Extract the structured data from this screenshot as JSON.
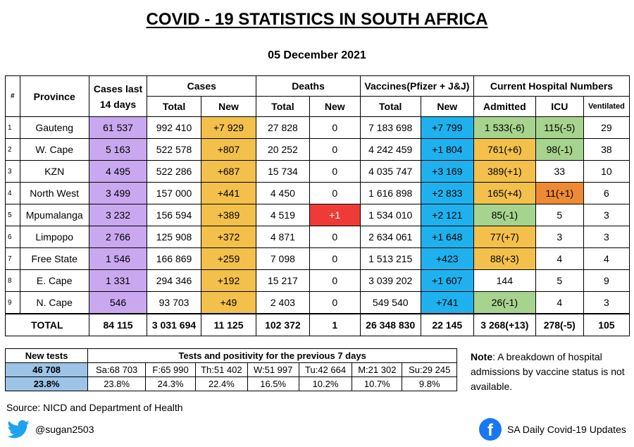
{
  "title": "COVID - 19 STATISTICS IN SOUTH AFRICA",
  "date": "05 December 2021",
  "headers": {
    "num": "#",
    "province": "Province",
    "cases14_line1": "Cases last",
    "cases14_line2": "14 days",
    "cases": "Cases",
    "deaths": "Deaths",
    "vaccines": "Vaccines(Pfizer + J&J)",
    "hospital": "Current Hospital Numbers",
    "total": "Total",
    "new": "New",
    "admitted": "Admitted",
    "icu": "ICU",
    "ventilated": "Ventilated"
  },
  "rows": [
    {
      "num": "1",
      "province": "Gauteng",
      "cases14": "61 537",
      "cases_total": "992 410",
      "cases_new": "+7 929",
      "deaths_total": "27 828",
      "deaths_new": "0",
      "vacc_total": "7 183 698",
      "vacc_new": "+7 799",
      "admitted": "1 533(-6)",
      "icu": "115(-5)",
      "ventilated": "29"
    },
    {
      "num": "2",
      "province": "W. Cape",
      "cases14": "5 163",
      "cases_total": "522 578",
      "cases_new": "+807",
      "deaths_total": "20 252",
      "deaths_new": "0",
      "vacc_total": "4 242 459",
      "vacc_new": "+1 804",
      "admitted": "761(+6)",
      "icu": "98(-1)",
      "ventilated": "38"
    },
    {
      "num": "3",
      "province": "KZN",
      "cases14": "4 495",
      "cases_total": "522 286",
      "cases_new": "+687",
      "deaths_total": "15 734",
      "deaths_new": "0",
      "vacc_total": "4 035 747",
      "vacc_new": "+3 169",
      "admitted": "389(+1)",
      "icu": "33",
      "ventilated": "10"
    },
    {
      "num": "4",
      "province": "North West",
      "cases14": "3 499",
      "cases_total": "157 000",
      "cases_new": "+441",
      "deaths_total": "4 450",
      "deaths_new": "0",
      "vacc_total": "1 616 898",
      "vacc_new": "+2 833",
      "admitted": "165(+4)",
      "icu": "11(+1)",
      "ventilated": "6"
    },
    {
      "num": "5",
      "province": "Mpumalanga",
      "cases14": "3 232",
      "cases_total": "156 594",
      "cases_new": "+389",
      "deaths_total": "4 519",
      "deaths_new": "+1",
      "vacc_total": "1 534 010",
      "vacc_new": "+2 121",
      "admitted": "85(-1)",
      "icu": "5",
      "ventilated": "3"
    },
    {
      "num": "6",
      "province": "Limpopo",
      "cases14": "2 766",
      "cases_total": "125 908",
      "cases_new": "+372",
      "deaths_total": "4 871",
      "deaths_new": "0",
      "vacc_total": "2 634 061",
      "vacc_new": "+1 648",
      "admitted": "77(+7)",
      "icu": "3",
      "ventilated": "3"
    },
    {
      "num": "7",
      "province": "Free State",
      "cases14": "1 546",
      "cases_total": "166 869",
      "cases_new": "+259",
      "deaths_total": "7 098",
      "deaths_new": "0",
      "vacc_total": "1 513 215",
      "vacc_new": "+423",
      "admitted": "88(+3)",
      "icu": "4",
      "ventilated": "4"
    },
    {
      "num": "8",
      "province": "E. Cape",
      "cases14": "1 331",
      "cases_total": "294 346",
      "cases_new": "+192",
      "deaths_total": "15 217",
      "deaths_new": "0",
      "vacc_total": "3 039 202",
      "vacc_new": "+1 607",
      "admitted": "144",
      "icu": "5",
      "ventilated": "9"
    },
    {
      "num": "9",
      "province": "N. Cape",
      "cases14": "546",
      "cases_total": "93 703",
      "cases_new": "+49",
      "deaths_total": "2 403",
      "deaths_new": "0",
      "vacc_total": "549 540",
      "vacc_new": "+741",
      "admitted": "26(-1)",
      "icu": "4",
      "ventilated": "3"
    }
  ],
  "total": {
    "label": "TOTAL",
    "cases14": "84 115",
    "cases_total": "3 031 694",
    "cases_new": "11 125",
    "deaths_total": "102 372",
    "deaths_new": "1",
    "vacc_total": "26 348 830",
    "vacc_new": "22 145",
    "admitted": "3 268(+13)",
    "icu": "278(-5)",
    "ventilated": "105"
  },
  "tests": {
    "new_tests_label": "New tests",
    "header": "Tests and positivity for the previous 7 days",
    "new_tests": "46 708",
    "positivity": "23.8%",
    "days": [
      {
        "label": "Sa:68 703",
        "pct": "23.8%"
      },
      {
        "label": "F:65 990",
        "pct": "24.3%"
      },
      {
        "label": "Th:51 402",
        "pct": "22.4%"
      },
      {
        "label": "W:51 997",
        "pct": "16.5%"
      },
      {
        "label": "Tu:42 664",
        "pct": "10.2%"
      },
      {
        "label": "M:21 302",
        "pct": "10.7%"
      },
      {
        "label": "Su:29 245",
        "pct": "9.8%"
      }
    ]
  },
  "note_label": "Note",
  "note_text": ": A breakdown of hospital admissions by vaccine status is not available.",
  "source": "Source: NICD and Department of Health",
  "twitter_handle": "@sugan2503",
  "facebook_page": "SA Daily Covid-19 Updates",
  "colors": {
    "cases14": "#c9a8ef",
    "cases_new": "#f3c04c",
    "vacc_new": "#1fb1ee",
    "green": "#a6d38e",
    "orange": "#f3c04c",
    "dark_orange": "#ee8a33",
    "red": "#ee3b37",
    "tests_blue": "#9dc3e6"
  },
  "highlights": {
    "admitted": [
      "green",
      "orange",
      "orange",
      "orange",
      "green",
      "orange",
      "orange",
      "",
      "green"
    ],
    "icu": [
      "green",
      "green",
      "",
      "dkorange",
      "",
      "",
      "",
      "",
      ""
    ],
    "deaths_new": [
      "",
      "",
      "",
      "",
      "red",
      "",
      "",
      "",
      ""
    ]
  }
}
